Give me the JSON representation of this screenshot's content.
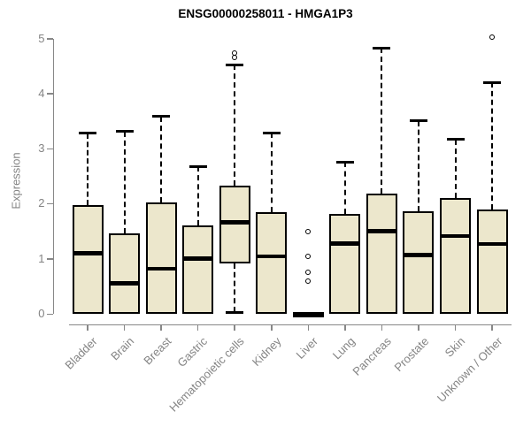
{
  "title": "ENSG00000258011 - HMGA1P3",
  "chart_data": {
    "type": "boxplot",
    "title": "ENSG00000258011 - HMGA1P3",
    "xlabel": "",
    "ylabel": "Expression",
    "ylim": [
      0,
      5
    ],
    "yticks": [
      0,
      1,
      2,
      3,
      4,
      5
    ],
    "grid": false,
    "legend": "none",
    "categories": [
      "Bladder",
      "Brain",
      "Breast",
      "Gastric",
      "Hematopoietic cells",
      "Kidney",
      "Liver",
      "Lung",
      "Pancreas",
      "Prostate",
      "Skin",
      "Unknown / Other"
    ],
    "boxes": [
      {
        "category": "Bladder",
        "whisker_low": 0,
        "q1": 0,
        "median": 1.1,
        "q3": 1.98,
        "whisker_high": 3.28,
        "outliers": []
      },
      {
        "category": "Brain",
        "whisker_low": 0,
        "q1": 0,
        "median": 0.55,
        "q3": 1.46,
        "whisker_high": 3.31,
        "outliers": []
      },
      {
        "category": "Breast",
        "whisker_low": 0,
        "q1": 0,
        "median": 0.82,
        "q3": 2.02,
        "whisker_high": 3.58,
        "outliers": []
      },
      {
        "category": "Gastric",
        "whisker_low": 0,
        "q1": 0,
        "median": 1.0,
        "q3": 1.61,
        "whisker_high": 2.68,
        "outliers": []
      },
      {
        "category": "Hematopoietic cells",
        "whisker_low": 0.03,
        "q1": 0.91,
        "median": 1.66,
        "q3": 2.33,
        "whisker_high": 4.52,
        "outliers": [
          4.66,
          4.74
        ]
      },
      {
        "category": "Kidney",
        "whisker_low": 0,
        "q1": 0,
        "median": 1.04,
        "q3": 1.85,
        "whisker_high": 3.29,
        "outliers": []
      },
      {
        "category": "Liver",
        "whisker_low": 0,
        "q1": 0,
        "median": 0.0,
        "q3": 0,
        "whisker_high": 0,
        "outliers": [
          0.6,
          0.75,
          1.05,
          1.5
        ]
      },
      {
        "category": "Lung",
        "whisker_low": 0,
        "q1": 0,
        "median": 1.28,
        "q3": 1.82,
        "whisker_high": 2.76,
        "outliers": []
      },
      {
        "category": "Pancreas",
        "whisker_low": 0,
        "q1": 0,
        "median": 1.5,
        "q3": 2.19,
        "whisker_high": 4.83,
        "outliers": []
      },
      {
        "category": "Prostate",
        "whisker_low": 0,
        "q1": 0,
        "median": 1.07,
        "q3": 1.86,
        "whisker_high": 3.5,
        "outliers": []
      },
      {
        "category": "Skin",
        "whisker_low": 0,
        "q1": 0,
        "median": 1.41,
        "q3": 2.11,
        "whisker_high": 3.17,
        "outliers": []
      },
      {
        "category": "Unknown / Other",
        "whisker_low": 0,
        "q1": 0,
        "median": 1.27,
        "q3": 1.9,
        "whisker_high": 4.2,
        "outliers": [
          5.03
        ]
      }
    ],
    "colors": {
      "box_fill": "#ece7cc",
      "box_border": "#000000",
      "median": "#000000",
      "axis": "#888888",
      "tick_label": "#848484",
      "title": "#000000"
    }
  }
}
